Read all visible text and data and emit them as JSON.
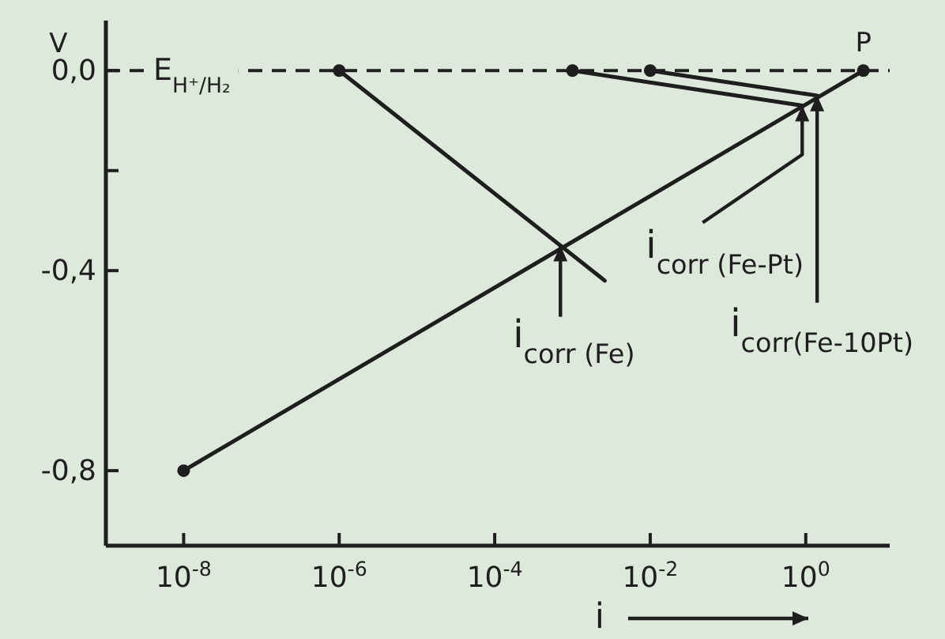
{
  "chart_data": {
    "type": "line",
    "xlabel": "i",
    "ylabel": "V",
    "series": [
      {
        "x": [
          1e-08,
          5.5
        ],
        "values": [
          -0.8,
          0
        ],
        "color": "#1e1e1e"
      },
      {
        "x": [
          1e-06,
          0.0026
        ],
        "values": [
          0,
          -0.42
        ],
        "color": "#1e1e1e"
      },
      {
        "x": [
          0.001,
          0.9
        ],
        "values": [
          0,
          -0.07
        ],
        "color": "#1e1e1e"
      },
      {
        "x": [
          0.01,
          1.4
        ],
        "values": [
          0,
          -0.05
        ],
        "color": "#1e1e1e"
      },
      {
        "type": "scatter",
        "x": [
          1e-08,
          1e-06,
          0.001,
          0.01,
          5.5
        ],
        "values": [
          -0.8,
          0,
          0,
          0,
          0
        ],
        "color": "#1e1e1e",
        "marker": "circle"
      }
    ],
    "log": "x",
    "xlim": [
      1e-09,
      12
    ],
    "xticks": [
      {
        "value": 1e-08,
        "label": "10$^{-8}$"
      },
      {
        "value": 1e-06,
        "label": "10$^{-6}$"
      },
      {
        "value": 0.0001,
        "label": "10$^{-4}$"
      },
      {
        "value": 0.01,
        "label": "10$^{-2}$"
      },
      {
        "value": 1,
        "label": "10$^{0}$"
      }
    ],
    "ylim": [
      -0.95,
      0.1
    ],
    "yticks": [
      {
        "value": 0,
        "label": "0,0"
      },
      {
        "value": -0.2,
        "label": null
      },
      {
        "value": -0.4,
        "label": "-0,4"
      },
      {
        "value": -0.8,
        "label": "-0,8"
      }
    ],
    "ref_lines": [
      {
        "axis": "y",
        "value": 0,
        "label": "E$_{H⁺/H₂}$",
        "line_style": "dashed",
        "color": "#1e1e1e"
      }
    ],
    "annotations": [
      {
        "text": "P",
        "x": 5.5,
        "y": 0
      },
      {
        "text": "i$_{corr (Fe)}$",
        "x": 0.0007,
        "y": -0.35
      },
      {
        "text": "i$_{corr (Fe-Pt)}$",
        "x": 0.9,
        "y": -0.07
      },
      {
        "text": "i$_{corr(Fe-10Pt)}$",
        "x": 1.4,
        "y": -0.05
      }
    ]
  }
}
